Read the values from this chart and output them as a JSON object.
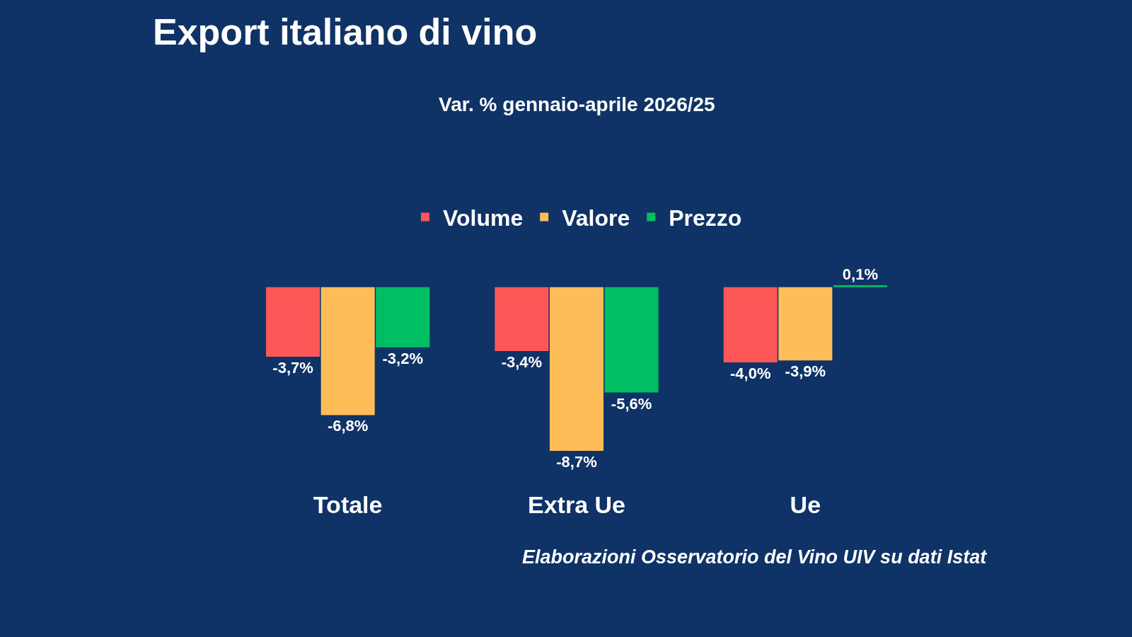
{
  "chart_data": {
    "type": "bar",
    "title": "Export italiano di vino",
    "subtitle": "Var. % gennaio-aprile 2026/25",
    "categories": [
      "Totale",
      "Extra Ue",
      "Ue"
    ],
    "series": [
      {
        "name": "Volume",
        "color": "#ff5757",
        "values": [
          -3.7,
          -3.4,
          -4.0
        ],
        "value_labels": [
          "-3,7%",
          "-3,4%",
          "-4,0%"
        ]
      },
      {
        "name": "Valore",
        "color": "#ffbd59",
        "values": [
          -6.8,
          -8.7,
          -3.9
        ],
        "value_labels": [
          "-6,8%",
          "-8,7%",
          "-3,9%"
        ]
      },
      {
        "name": "Prezzo",
        "color": "#00bf63",
        "values": [
          -3.2,
          -5.6,
          0.1
        ],
        "value_labels": [
          "-3,2%",
          "-5,6%",
          "0,1%"
        ]
      }
    ],
    "legend": "top",
    "annotations": [
      "Elaborazioni Osservatorio del Vino UIV su dati Istat"
    ]
  }
}
